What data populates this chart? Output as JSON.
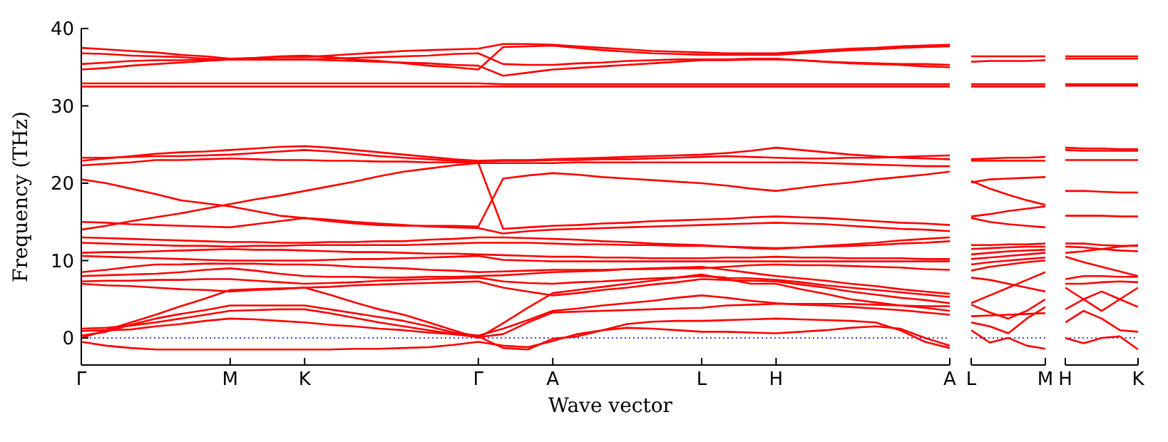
{
  "chart_data": [
    {
      "type": "line",
      "ylabel": "Frequency (THz)",
      "xlabel": "Wave vector",
      "ylim": [
        -3.5,
        40
      ],
      "yticks": [
        0,
        10,
        20,
        30,
        40
      ],
      "categories": [
        "Γ",
        null,
        null,
        null,
        null,
        null,
        "M",
        null,
        null,
        "K",
        null,
        null,
        null,
        null,
        null,
        null,
        "Γ",
        null,
        null,
        "A",
        null,
        null,
        null,
        null,
        null,
        "L",
        null,
        null,
        "H",
        null,
        null,
        null,
        null,
        null,
        null,
        "A"
      ],
      "marker": "none",
      "line_style": "solid",
      "ref_lines": [
        {
          "axis": "y",
          "value": 0,
          "color": "#0000ff",
          "line_style": "dotted"
        }
      ],
      "series": [
        {
          "color": "#ff0000",
          "values": [
            37.5,
            37.3,
            37.1,
            36.9,
            36.6,
            36.4,
            36.1,
            36.2,
            36.3,
            36.3,
            36.5,
            36.7,
            36.9,
            37.1,
            37.2,
            37.3,
            37.4,
            38.0,
            38.0,
            37.9,
            37.7,
            37.5,
            37.3,
            37.1,
            37.0,
            36.9,
            36.8,
            36.8,
            36.8,
            37.0,
            37.2,
            37.4,
            37.5,
            37.7,
            37.8,
            37.9
          ]
        },
        {
          "color": "#ff0000",
          "values": [
            36.8,
            36.7,
            36.5,
            36.4,
            36.3,
            36.1,
            36.0,
            36.0,
            36.0,
            36.0,
            36.1,
            36.2,
            36.3,
            36.4,
            36.5,
            36.7,
            36.8,
            35.4,
            35.3,
            35.3,
            35.5,
            35.6,
            35.8,
            35.9,
            36.0,
            36.0,
            36.0,
            36.1,
            36.1,
            35.9,
            35.7,
            35.5,
            35.4,
            35.3,
            35.1,
            35.0
          ]
        },
        {
          "color": "#ff0000",
          "values": [
            35.4,
            35.6,
            35.8,
            35.9,
            35.9,
            36.0,
            36.0,
            36.0,
            36.0,
            36.0,
            35.9,
            35.8,
            35.7,
            35.6,
            35.5,
            35.3,
            35.2,
            33.9,
            34.3,
            34.7,
            34.9,
            35.1,
            35.3,
            35.5,
            35.7,
            35.9,
            35.9,
            36.0,
            36.0,
            35.9,
            35.7,
            35.6,
            35.5,
            35.4,
            35.4,
            35.3
          ]
        },
        {
          "color": "#ff0000",
          "values": [
            34.7,
            34.9,
            35.2,
            35.4,
            35.6,
            35.8,
            36.0,
            36.2,
            36.4,
            36.5,
            36.3,
            36.0,
            35.8,
            35.5,
            35.2,
            35.0,
            34.7,
            37.6,
            37.7,
            37.8,
            37.5,
            37.2,
            37.0,
            36.8,
            36.7,
            36.6,
            36.6,
            36.6,
            36.6,
            36.8,
            37.0,
            37.2,
            37.3,
            37.5,
            37.6,
            37.7
          ]
        },
        {
          "color": "#ff0000",
          "values": [
            32.9,
            32.9,
            32.9,
            32.9,
            32.9,
            32.9,
            32.9,
            32.9,
            32.9,
            32.9,
            32.9,
            32.9,
            32.9,
            32.9,
            32.9,
            32.9,
            32.9,
            32.8,
            32.8,
            32.8,
            32.8,
            32.8,
            32.8,
            32.8,
            32.8,
            32.8,
            32.8,
            32.8,
            32.8,
            32.8,
            32.8,
            32.8,
            32.8,
            32.8,
            32.8,
            32.8
          ]
        },
        {
          "color": "#ff0000",
          "values": [
            32.5,
            32.5,
            32.5,
            32.5,
            32.5,
            32.5,
            32.5,
            32.5,
            32.5,
            32.5,
            32.5,
            32.5,
            32.5,
            32.5,
            32.5,
            32.5,
            32.5,
            32.5,
            32.5,
            32.5,
            32.5,
            32.5,
            32.5,
            32.5,
            32.5,
            32.5,
            32.5,
            32.5,
            32.5,
            32.5,
            32.5,
            32.5,
            32.5,
            32.5,
            32.5,
            32.5
          ]
        },
        {
          "color": "#ff0000",
          "values": [
            22.9,
            23.2,
            23.5,
            23.8,
            24.0,
            24.1,
            24.3,
            24.5,
            24.7,
            24.8,
            24.6,
            24.3,
            24.0,
            23.7,
            23.4,
            23.1,
            22.9,
            23.0,
            23.0,
            23.1,
            23.2,
            23.3,
            23.4,
            23.5,
            23.6,
            23.7,
            23.9,
            24.2,
            24.6,
            24.3,
            24.0,
            23.7,
            23.5,
            23.3,
            23.2,
            23.1
          ]
        },
        {
          "color": "#ff0000",
          "values": [
            23.3,
            23.3,
            23.4,
            23.5,
            23.5,
            23.6,
            23.7,
            23.9,
            24.1,
            24.3,
            24.1,
            23.8,
            23.5,
            23.3,
            23.1,
            22.9,
            22.8,
            22.9,
            22.9,
            23.0,
            23.0,
            23.1,
            23.1,
            23.2,
            23.3,
            23.4,
            23.5,
            23.4,
            23.3,
            23.2,
            23.2,
            23.3,
            23.3,
            23.4,
            23.5,
            23.6
          ]
        },
        {
          "color": "#ff0000",
          "values": [
            22.3,
            22.5,
            22.7,
            23.0,
            23.0,
            23.1,
            23.2,
            23.1,
            23.0,
            23.0,
            22.9,
            22.9,
            22.8,
            22.8,
            22.7,
            22.7,
            22.6,
            22.6,
            22.6,
            22.6,
            22.7,
            22.7,
            22.7,
            22.7,
            22.7,
            22.7,
            22.7,
            22.7,
            22.7,
            22.7,
            22.6,
            22.5,
            22.4,
            22.3,
            22.2,
            22.2
          ]
        },
        {
          "color": "#ff0000",
          "values": [
            20.5,
            20.0,
            19.3,
            18.6,
            17.8,
            17.4,
            17.0,
            16.4,
            15.8,
            15.5,
            15.1,
            14.8,
            14.6,
            14.5,
            14.5,
            14.5,
            14.4,
            20.6,
            21.0,
            21.3,
            21.1,
            20.8,
            20.6,
            20.4,
            20.2,
            20.0,
            19.7,
            19.3,
            19.0,
            19.4,
            19.8,
            20.1,
            20.5,
            20.8,
            21.1,
            21.5
          ]
        },
        {
          "color": "#ff0000",
          "values": [
            14.0,
            14.5,
            15.1,
            15.6,
            16.1,
            16.7,
            17.3,
            17.9,
            18.4,
            19.0,
            19.6,
            20.2,
            20.9,
            21.5,
            21.9,
            22.3,
            22.6,
            14.1,
            14.3,
            14.5,
            14.6,
            14.8,
            14.9,
            15.1,
            15.2,
            15.3,
            15.4,
            15.6,
            15.7,
            15.6,
            15.5,
            15.3,
            15.1,
            14.9,
            14.8,
            14.6
          ]
        },
        {
          "color": "#ff0000",
          "values": [
            15.0,
            14.9,
            14.7,
            14.6,
            14.5,
            14.4,
            14.3,
            14.7,
            15.1,
            15.5,
            15.3,
            15.0,
            14.8,
            14.6,
            14.4,
            14.3,
            14.2,
            13.5,
            13.8,
            14.0,
            14.1,
            14.2,
            14.3,
            14.4,
            14.5,
            14.6,
            14.7,
            14.8,
            14.9,
            14.8,
            14.7,
            14.5,
            14.3,
            14.1,
            14.0,
            13.8
          ]
        },
        {
          "color": "#ff0000",
          "values": [
            13.0,
            12.9,
            12.8,
            12.7,
            12.6,
            12.5,
            12.4,
            12.4,
            12.3,
            12.3,
            12.4,
            12.4,
            12.5,
            12.5,
            12.7,
            12.8,
            13.0,
            13.0,
            12.9,
            12.8,
            12.7,
            12.5,
            12.4,
            12.2,
            12.1,
            12.0,
            11.8,
            11.6,
            11.5,
            11.7,
            11.9,
            12.1,
            12.3,
            12.6,
            12.8,
            13.0
          ]
        },
        {
          "color": "#ff0000",
          "values": [
            12.3,
            12.2,
            12.1,
            12.0,
            11.9,
            11.9,
            11.8,
            11.9,
            11.9,
            12.0,
            12.0,
            12.0,
            12.0,
            12.0,
            12.1,
            12.2,
            12.3,
            12.3,
            12.3,
            12.2,
            12.1,
            12.1,
            12.0,
            12.0,
            11.9,
            11.9,
            11.8,
            11.7,
            11.6,
            11.7,
            11.8,
            11.9,
            12.0,
            12.2,
            12.3,
            12.5
          ]
        },
        {
          "color": "#ff0000",
          "values": [
            11.0,
            11.1,
            11.1,
            11.2,
            11.3,
            11.4,
            11.5,
            11.4,
            11.4,
            11.3,
            11.2,
            11.1,
            11.1,
            11.0,
            10.9,
            10.9,
            10.8,
            10.7,
            10.6,
            10.5,
            10.5,
            10.4,
            10.4,
            10.3,
            10.3,
            10.3,
            10.4,
            10.4,
            10.5,
            10.4,
            10.4,
            10.3,
            10.3,
            10.3,
            10.2,
            10.2
          ]
        },
        {
          "color": "#ff0000",
          "values": [
            10.6,
            10.5,
            10.4,
            10.3,
            10.2,
            10.1,
            10.0,
            10.0,
            10.0,
            10.0,
            10.1,
            10.2,
            10.2,
            10.3,
            10.4,
            10.5,
            10.6,
            10.1,
            10.0,
            9.9,
            9.9,
            9.9,
            9.9,
            9.9,
            9.9,
            9.9,
            9.9,
            9.9,
            9.9,
            9.9,
            9.9,
            9.9,
            9.9,
            9.9,
            9.9,
            9.9
          ]
        },
        {
          "color": "#ff0000",
          "values": [
            8.5,
            8.8,
            9.2,
            9.5,
            9.5,
            9.6,
            9.6,
            9.6,
            9.5,
            9.5,
            9.4,
            9.2,
            9.1,
            9.0,
            8.8,
            8.7,
            8.5,
            8.6,
            8.7,
            8.8,
            8.8,
            8.8,
            8.9,
            8.9,
            9.0,
            9.0,
            9.2,
            9.4,
            9.5,
            9.4,
            9.4,
            9.3,
            9.2,
            9.1,
            8.9,
            8.8
          ]
        },
        {
          "color": "#ff0000",
          "values": [
            8.0,
            8.1,
            8.2,
            8.3,
            8.5,
            8.8,
            9.0,
            8.7,
            8.3,
            8.0,
            7.9,
            7.9,
            7.8,
            7.8,
            7.9,
            7.9,
            8.0,
            8.1,
            8.3,
            8.5,
            8.6,
            8.7,
            8.9,
            9.0,
            9.1,
            9.2,
            8.8,
            8.4,
            8.0,
            7.7,
            7.4,
            7.0,
            6.7,
            6.3,
            6.0,
            5.7
          ]
        },
        {
          "color": "#ff0000",
          "values": [
            7.3,
            7.4,
            7.4,
            7.5,
            7.5,
            7.6,
            7.6,
            7.4,
            7.2,
            7.0,
            7.1,
            7.2,
            7.4,
            7.5,
            7.6,
            7.7,
            7.8,
            7.3,
            7.1,
            7.0,
            7.2,
            7.3,
            7.5,
            7.7,
            7.8,
            8.0,
            7.8,
            7.7,
            7.5,
            7.2,
            6.8,
            6.5,
            6.2,
            5.9,
            5.6,
            5.3
          ]
        },
        {
          "color": "#ff0000",
          "values": [
            7.0,
            6.8,
            6.7,
            6.5,
            6.3,
            6.2,
            6.0,
            6.2,
            6.3,
            6.5,
            6.6,
            6.8,
            6.9,
            7.0,
            7.1,
            7.2,
            7.3,
            6.5,
            6.0,
            5.5,
            5.8,
            6.2,
            6.5,
            6.9,
            7.2,
            7.6,
            7.5,
            7.4,
            7.3,
            6.9,
            6.5,
            6.0,
            5.6,
            5.2,
            4.9,
            4.5
          ]
        },
        {
          "color": "#ff0000",
          "values": [
            0,
            1.0,
            2.0,
            3.0,
            4.1,
            5.1,
            6.2,
            6.3,
            6.4,
            6.5,
            5.6,
            4.6,
            3.7,
            3.0,
            2.0,
            1.0,
            0,
            1.9,
            3.9,
            5.8,
            6.2,
            6.6,
            7.0,
            7.4,
            7.8,
            8.2,
            7.6,
            7.0,
            7.0,
            6.3,
            5.7,
            5.0,
            4.6,
            4.2,
            3.9,
            3.5
          ]
        },
        {
          "color": "#ff0000",
          "values": [
            0.3,
            0.8,
            1.7,
            2.5,
            3.1,
            3.6,
            4.2,
            4.2,
            4.2,
            4.2,
            3.7,
            3.2,
            2.7,
            2.2,
            1.5,
            0.7,
            0.3,
            1.2,
            2.3,
            3.5,
            3.8,
            4.2,
            4.5,
            4.8,
            5.2,
            5.5,
            5.2,
            4.8,
            4.5,
            4.3,
            4.2,
            4.0,
            3.8,
            3.6,
            3.3,
            3.0
          ]
        },
        {
          "color": "#ff0000",
          "values": [
            1.2,
            1.3,
            1.6,
            2.0,
            2.5,
            3.0,
            3.5,
            3.6,
            3.7,
            3.7,
            3.2,
            2.6,
            2.0,
            1.5,
            1.0,
            0.5,
            0.1,
            0.5,
            2.0,
            3.3,
            3.4,
            3.5,
            3.6,
            3.7,
            3.8,
            3.9,
            4.2,
            4.3,
            4.4,
            4.4,
            4.4,
            4.4,
            4.3,
            4.2,
            4.1,
            4.1
          ]
        },
        {
          "color": "#ff0000",
          "values": [
            -0.5,
            -1.0,
            -1.3,
            -1.5,
            -1.5,
            -1.5,
            -1.5,
            -1.5,
            -1.5,
            -1.5,
            -1.5,
            -1.4,
            -1.4,
            -1.3,
            -1.2,
            -0.9,
            -0.5,
            -1.0,
            -1.2,
            -0.4,
            0.5,
            1.0,
            1.3,
            1.2,
            1.0,
            0.8,
            0.8,
            0.7,
            0.6,
            0.8,
            1.0,
            1.3,
            1.5,
            1.2,
            0.0,
            -1.0
          ]
        },
        {
          "color": "#ff0000",
          "values": [
            0.9,
            1.0,
            1.1,
            1.5,
            1.8,
            2.2,
            2.5,
            2.4,
            2.2,
            2.0,
            1.7,
            1.5,
            1.2,
            1.0,
            0.7,
            0.5,
            0.2,
            -1.3,
            -1.5,
            -0.1,
            0.2,
            1.0,
            1.8,
            2.1,
            2.2,
            2.2,
            2.3,
            2.4,
            2.5,
            2.4,
            2.3,
            2.2,
            2.0,
            1.0,
            -0.5,
            -1.3
          ]
        }
      ]
    },
    {
      "type": "line",
      "ylim": [
        -3.5,
        40
      ],
      "yticks": [
        0,
        10,
        20,
        30,
        40
      ],
      "tick_labels": "x",
      "categories": [
        "L",
        null,
        null,
        null,
        "M"
      ],
      "marker": "none",
      "line_style": "solid",
      "ref_lines": [
        {
          "axis": "y",
          "value": 0,
          "color": "#0000ff",
          "line_style": "dotted"
        }
      ],
      "series": [
        {
          "color": "#ff0000",
          "values": [
            36.4,
            36.4,
            36.4,
            36.4,
            36.4
          ]
        },
        {
          "color": "#ff0000",
          "values": [
            35.7,
            35.8,
            35.8,
            35.8,
            35.9
          ]
        },
        {
          "color": "#ff0000",
          "values": [
            32.8,
            32.8,
            32.8,
            32.8,
            32.8
          ]
        },
        {
          "color": "#ff0000",
          "values": [
            32.5,
            32.5,
            32.5,
            32.5,
            32.5
          ]
        },
        {
          "color": "#ff0000",
          "values": [
            23.1,
            23.2,
            23.3,
            23.3,
            23.4
          ]
        },
        {
          "color": "#ff0000",
          "values": [
            22.9,
            22.9,
            22.9,
            22.9,
            22.9
          ]
        },
        {
          "color": "#ff0000",
          "values": [
            20.3,
            19.3,
            18.5,
            17.8,
            17.2
          ]
        },
        {
          "color": "#ff0000",
          "values": [
            20.1,
            20.5,
            20.6,
            20.7,
            20.8
          ]
        },
        {
          "color": "#ff0000",
          "values": [
            15.7,
            16.0,
            16.4,
            16.7,
            17.0
          ]
        },
        {
          "color": "#ff0000",
          "values": [
            15.5,
            15.0,
            14.7,
            14.5,
            14.3
          ]
        },
        {
          "color": "#ff0000",
          "values": [
            12.0,
            12.0,
            12.1,
            12.1,
            12.2
          ]
        },
        {
          "color": "#ff0000",
          "values": [
            11.5,
            11.6,
            11.7,
            11.8,
            11.8
          ]
        },
        {
          "color": "#ff0000",
          "values": [
            10.8,
            11.0,
            11.2,
            11.3,
            11.4
          ]
        },
        {
          "color": "#ff0000",
          "values": [
            10.2,
            10.4,
            10.6,
            10.8,
            11.0
          ]
        },
        {
          "color": "#ff0000",
          "values": [
            9.5,
            9.8,
            10.0,
            10.2,
            10.4
          ]
        },
        {
          "color": "#ff0000",
          "values": [
            8.7,
            9.2,
            9.5,
            9.8,
            10.0
          ]
        },
        {
          "color": "#ff0000",
          "values": [
            7.8,
            7.5,
            7.0,
            6.5,
            6.0
          ]
        },
        {
          "color": "#ff0000",
          "values": [
            4.5,
            5.5,
            6.5,
            7.5,
            8.5
          ]
        },
        {
          "color": "#ff0000",
          "values": [
            4.3,
            3.3,
            2.5,
            3.5,
            5.0
          ]
        },
        {
          "color": "#ff0000",
          "values": [
            2.8,
            2.9,
            3.0,
            3.1,
            3.2
          ]
        },
        {
          "color": "#ff0000",
          "values": [
            1.0,
            -0.6,
            0.0,
            -1.0,
            -1.4
          ]
        },
        {
          "color": "#ff0000",
          "values": [
            2.0,
            1.5,
            0.6,
            2.5,
            4.0
          ]
        }
      ]
    },
    {
      "type": "line",
      "ylim": [
        -3.5,
        40
      ],
      "yticks": [
        0,
        10,
        20,
        30,
        40
      ],
      "tick_labels": "x",
      "categories": [
        "H",
        null,
        null,
        null,
        "K"
      ],
      "marker": "none",
      "line_style": "solid",
      "ref_lines": [
        {
          "axis": "y",
          "value": 0,
          "color": "#0000ff",
          "line_style": "dotted"
        }
      ],
      "series": [
        {
          "color": "#ff0000",
          "values": [
            36.4,
            36.4,
            36.4,
            36.4,
            36.4
          ]
        },
        {
          "color": "#ff0000",
          "values": [
            36.1,
            36.1,
            36.1,
            36.1,
            36.1
          ]
        },
        {
          "color": "#ff0000",
          "values": [
            32.8,
            32.8,
            32.8,
            32.8,
            32.8
          ]
        },
        {
          "color": "#ff0000",
          "values": [
            32.6,
            32.6,
            32.6,
            32.6,
            32.6
          ]
        },
        {
          "color": "#ff0000",
          "values": [
            24.6,
            24.5,
            24.5,
            24.4,
            24.4
          ]
        },
        {
          "color": "#ff0000",
          "values": [
            24.3,
            24.2,
            24.2,
            24.2,
            24.2
          ]
        },
        {
          "color": "#ff0000",
          "values": [
            23.0,
            23.0,
            23.0,
            23.0,
            23.0
          ]
        },
        {
          "color": "#ff0000",
          "values": [
            19.0,
            19.0,
            18.9,
            18.8,
            18.8
          ]
        },
        {
          "color": "#ff0000",
          "values": [
            15.8,
            15.8,
            15.8,
            15.7,
            15.7
          ]
        },
        {
          "color": "#ff0000",
          "values": [
            12.2,
            12.2,
            12.0,
            11.9,
            11.9
          ]
        },
        {
          "color": "#ff0000",
          "values": [
            11.8,
            11.7,
            11.5,
            11.3,
            11.2
          ]
        },
        {
          "color": "#ff0000",
          "values": [
            11.0,
            11.2,
            11.5,
            11.8,
            12.0
          ]
        },
        {
          "color": "#ff0000",
          "values": [
            10.5,
            9.8,
            9.2,
            8.6,
            8.0
          ]
        },
        {
          "color": "#ff0000",
          "values": [
            7.6,
            8.0,
            8.0,
            7.9,
            7.9
          ]
        },
        {
          "color": "#ff0000",
          "values": [
            7.0,
            7.0,
            7.2,
            7.3,
            7.2
          ]
        },
        {
          "color": "#ff0000",
          "values": [
            6.5,
            5.0,
            3.5,
            5.0,
            6.5
          ]
        },
        {
          "color": "#ff0000",
          "values": [
            3.7,
            5.0,
            6.0,
            5.0,
            4.0
          ]
        },
        {
          "color": "#ff0000",
          "values": [
            2.0,
            3.5,
            2.5,
            1.0,
            0.8
          ]
        },
        {
          "color": "#ff0000",
          "values": [
            0.0,
            -0.7,
            0.0,
            0.2,
            -1.5
          ]
        }
      ]
    }
  ]
}
